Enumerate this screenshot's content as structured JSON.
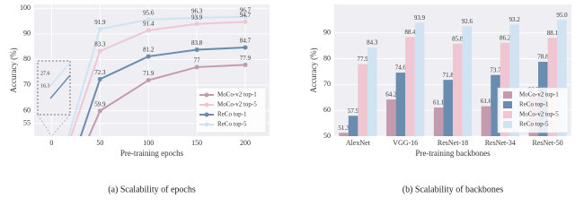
{
  "chart_data": [
    {
      "type": "line",
      "caption": "(a) Scalability of epochs",
      "xlabel": "Pre-training epochs",
      "ylabel": "Accuracy (%)",
      "x": [
        0,
        50,
        100,
        150,
        200
      ],
      "series": [
        {
          "name": "MoCo-v2 top-1",
          "color": "#c49aae",
          "values": [
            16.3,
            59.9,
            71.9,
            77,
            77.9
          ]
        },
        {
          "name": "MoCo-v2 top-5",
          "color": "#efc6d2",
          "values": [
            27.6,
            83.3,
            91.4,
            93.9,
            94.7
          ]
        },
        {
          "name": "ReCo top-1",
          "color": "#6a8caf",
          "values": [
            16.3,
            72.3,
            81.2,
            83.8,
            84.7
          ]
        },
        {
          "name": "ReCo top-5",
          "color": "#cfe3f3",
          "values": [
            27.6,
            91.9,
            95.6,
            96.3,
            96.7
          ]
        }
      ],
      "xlim": [
        -18,
        225
      ],
      "xticks": [
        0,
        50,
        100,
        150,
        200
      ],
      "ylim": [
        50,
        101.5
      ],
      "yticks": [
        55,
        60,
        70,
        80,
        90,
        100
      ],
      "grid": true,
      "legend": "lower right"
    },
    {
      "type": "bar",
      "caption": "(b) Scalability of backbones",
      "xlabel": "Pre-training backbones",
      "ylabel": "Accuracy (%)",
      "categories": [
        "AlexNet",
        "VGG-16",
        "ResNet-18",
        "ResNet-34",
        "ResNet-50"
      ],
      "series": [
        {
          "name": "MoCo-v2 top-1",
          "color": "#c49aae",
          "values": [
            51.3,
            64.2,
            61.1,
            61.6,
            66.2
          ]
        },
        {
          "name": "ReCo top-1",
          "color": "#6a8caf",
          "values": [
            57.9,
            74.6,
            71.8,
            73.7,
            78.8
          ]
        },
        {
          "name": "MoCo-v2 top-5",
          "color": "#efc6d2",
          "values": [
            77.9,
            88.4,
            85.8,
            86.2,
            88.1
          ]
        },
        {
          "name": "ReCo top-5",
          "color": "#cfe3f3",
          "values": [
            84.3,
            93.9,
            92.6,
            93.2,
            95.0
          ],
          "value_labels": [
            "84.3",
            "93.9",
            "92.6",
            "93.2",
            "95.0"
          ]
        }
      ],
      "ylim": [
        50,
        101
      ],
      "yticks": [
        50,
        60,
        70,
        80,
        90
      ],
      "grid": true,
      "legend": "lower right"
    }
  ]
}
